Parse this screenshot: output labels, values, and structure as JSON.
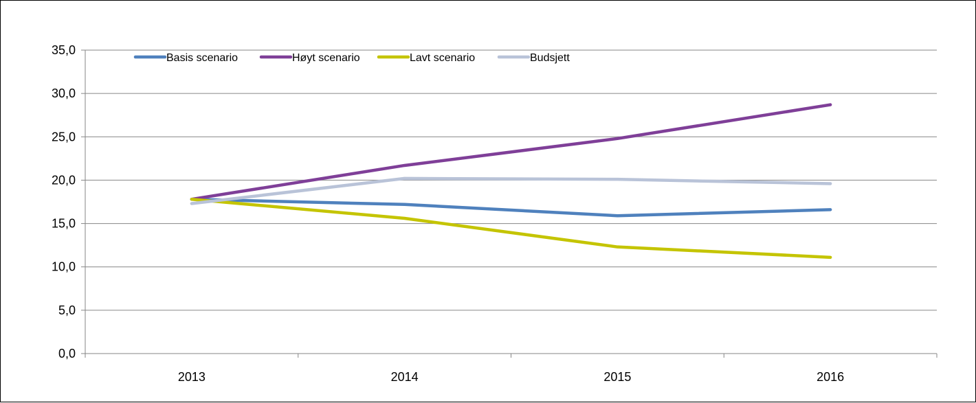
{
  "chart_data": {
    "type": "line",
    "title": "",
    "xlabel": "",
    "ylabel": "",
    "categories": [
      "2013",
      "2014",
      "2015",
      "2016"
    ],
    "ylim": [
      0,
      35
    ],
    "yticks": [
      0,
      5,
      10,
      15,
      20,
      25,
      30,
      35
    ],
    "ytick_labels": [
      "0,0",
      "5,0",
      "10,0",
      "15,0",
      "20,0",
      "25,0",
      "30,0",
      "35,0"
    ],
    "grid": true,
    "legend_position": "top-left",
    "series": [
      {
        "name": "Basis scenario",
        "color": "#4f81bd",
        "values": [
          17.8,
          17.2,
          15.9,
          16.6
        ]
      },
      {
        "name": "Høyt scenario",
        "color": "#7f3f98",
        "values": [
          17.8,
          21.7,
          24.8,
          28.7
        ]
      },
      {
        "name": "Lavt scenario",
        "color": "#c4c400",
        "values": [
          17.8,
          15.6,
          12.3,
          11.1
        ]
      },
      {
        "name": "Budsjett",
        "color": "#b9c3d8",
        "values": [
          17.3,
          20.2,
          20.1,
          19.6
        ]
      }
    ]
  }
}
